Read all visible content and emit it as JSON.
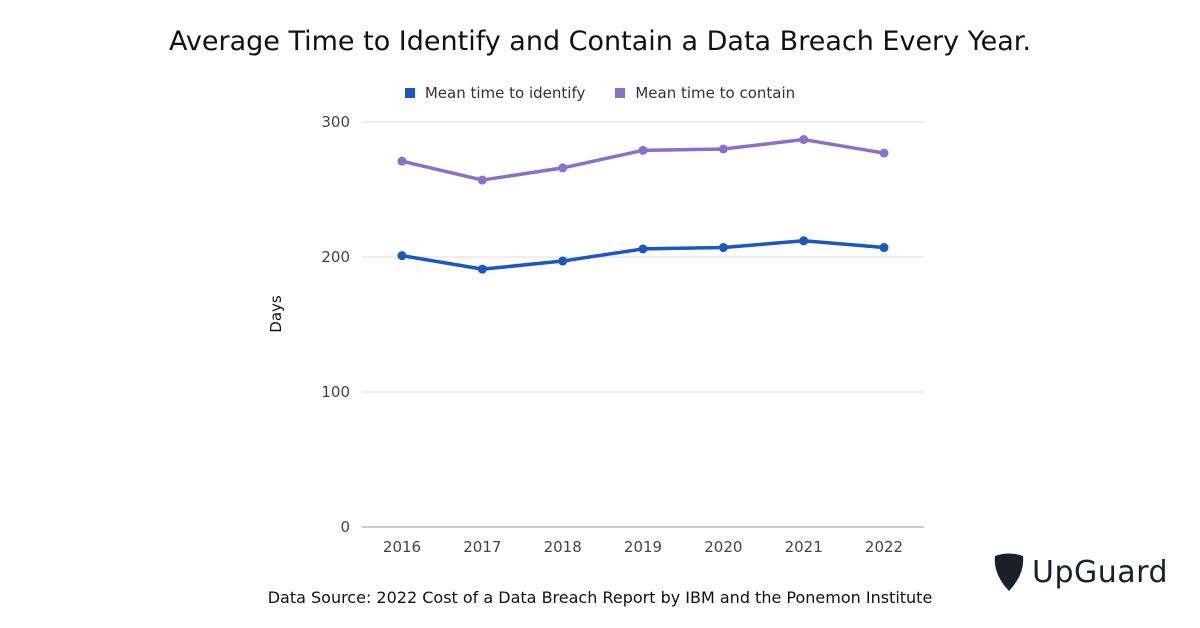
{
  "chart_data": {
    "type": "line",
    "title": "Average Time to Identify and Contain a Data Breach Every Year.",
    "ylabel": "Days",
    "ylim": [
      0,
      300
    ],
    "yticks": [
      0,
      100,
      200,
      300
    ],
    "grid": true,
    "legend_position": "top-center",
    "categories": [
      "2016",
      "2017",
      "2018",
      "2019",
      "2020",
      "2021",
      "2022"
    ],
    "series": [
      {
        "name": "Mean time to identify",
        "color": "#1a56c4",
        "values": [
          201,
          191,
          197,
          206,
          207,
          212,
          207
        ]
      },
      {
        "name": "Mean time to contain",
        "color": "#8a70cc",
        "values": [
          271,
          257,
          266,
          279,
          280,
          287,
          277
        ]
      }
    ]
  },
  "source": "Data Source: 2022 Cost of a Data Breach Report by IBM and the Ponemon Institute",
  "brand": {
    "name": "UpGuard",
    "logo_icon": "shield-icon",
    "color": "#1b1f2a"
  }
}
